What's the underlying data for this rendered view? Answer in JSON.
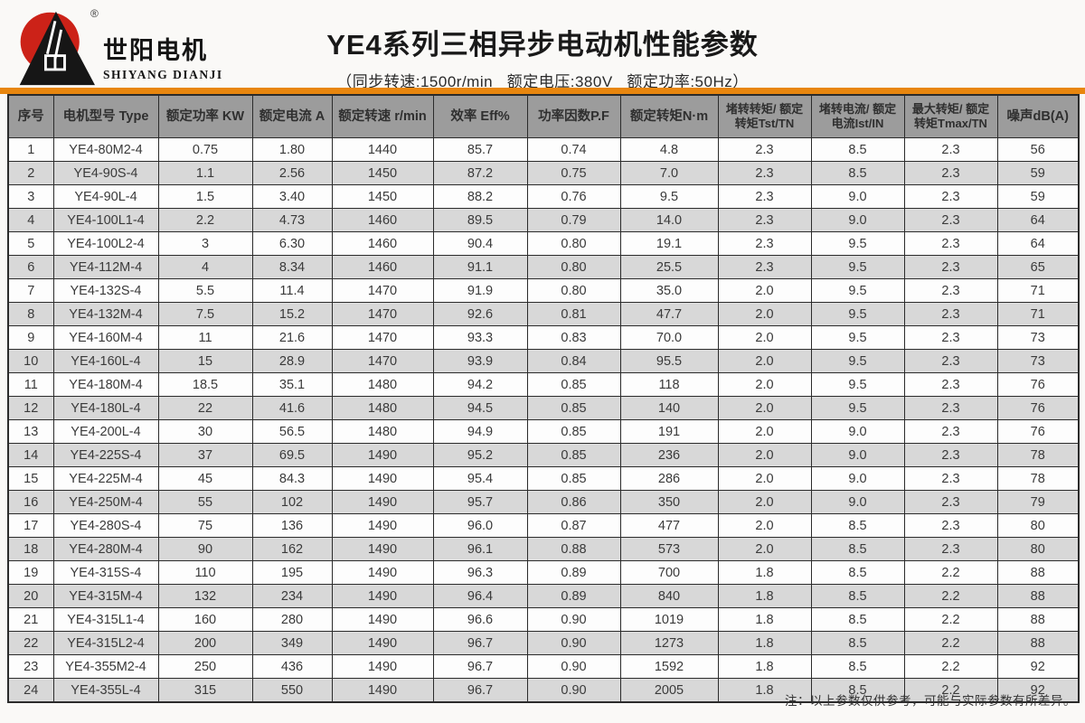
{
  "brand": {
    "name_cn": "世阳电机",
    "name_en": "SHIYANG DIANJI",
    "registered_mark": "®"
  },
  "header": {
    "title": "YE4系列三相异步电动机性能参数",
    "subtitle": "（同步转速:1500r/min   额定电压:380V   额定功率:50Hz）"
  },
  "table": {
    "columns": [
      "序号",
      "电机型号 Type",
      "额定功率 KW",
      "额定电流 A",
      "额定转速 r/min",
      "效率 Eff%",
      "功率因数P.F",
      "额定转矩N·m",
      "堵转转矩/ 额定转矩Tst/TN",
      "堵转电流/ 额定电流Ist/IN",
      "最大转矩/ 额定转矩Tmax/TN",
      "噪声dB(A)"
    ],
    "rows": [
      [
        "1",
        "YE4-80M2-4",
        "0.75",
        "1.80",
        "1440",
        "85.7",
        "0.74",
        "4.8",
        "2.3",
        "8.5",
        "2.3",
        "56"
      ],
      [
        "2",
        "YE4-90S-4",
        "1.1",
        "2.56",
        "1450",
        "87.2",
        "0.75",
        "7.0",
        "2.3",
        "8.5",
        "2.3",
        "59"
      ],
      [
        "3",
        "YE4-90L-4",
        "1.5",
        "3.40",
        "1450",
        "88.2",
        "0.76",
        "9.5",
        "2.3",
        "9.0",
        "2.3",
        "59"
      ],
      [
        "4",
        "YE4-100L1-4",
        "2.2",
        "4.73",
        "1460",
        "89.5",
        "0.79",
        "14.0",
        "2.3",
        "9.0",
        "2.3",
        "64"
      ],
      [
        "5",
        "YE4-100L2-4",
        "3",
        "6.30",
        "1460",
        "90.4",
        "0.80",
        "19.1",
        "2.3",
        "9.5",
        "2.3",
        "64"
      ],
      [
        "6",
        "YE4-112M-4",
        "4",
        "8.34",
        "1460",
        "91.1",
        "0.80",
        "25.5",
        "2.3",
        "9.5",
        "2.3",
        "65"
      ],
      [
        "7",
        "YE4-132S-4",
        "5.5",
        "11.4",
        "1470",
        "91.9",
        "0.80",
        "35.0",
        "2.0",
        "9.5",
        "2.3",
        "71"
      ],
      [
        "8",
        "YE4-132M-4",
        "7.5",
        "15.2",
        "1470",
        "92.6",
        "0.81",
        "47.7",
        "2.0",
        "9.5",
        "2.3",
        "71"
      ],
      [
        "9",
        "YE4-160M-4",
        "11",
        "21.6",
        "1470",
        "93.3",
        "0.83",
        "70.0",
        "2.0",
        "9.5",
        "2.3",
        "73"
      ],
      [
        "10",
        "YE4-160L-4",
        "15",
        "28.9",
        "1470",
        "93.9",
        "0.84",
        "95.5",
        "2.0",
        "9.5",
        "2.3",
        "73"
      ],
      [
        "11",
        "YE4-180M-4",
        "18.5",
        "35.1",
        "1480",
        "94.2",
        "0.85",
        "118",
        "2.0",
        "9.5",
        "2.3",
        "76"
      ],
      [
        "12",
        "YE4-180L-4",
        "22",
        "41.6",
        "1480",
        "94.5",
        "0.85",
        "140",
        "2.0",
        "9.5",
        "2.3",
        "76"
      ],
      [
        "13",
        "YE4-200L-4",
        "30",
        "56.5",
        "1480",
        "94.9",
        "0.85",
        "191",
        "2.0",
        "9.0",
        "2.3",
        "76"
      ],
      [
        "14",
        "YE4-225S-4",
        "37",
        "69.5",
        "1490",
        "95.2",
        "0.85",
        "236",
        "2.0",
        "9.0",
        "2.3",
        "78"
      ],
      [
        "15",
        "YE4-225M-4",
        "45",
        "84.3",
        "1490",
        "95.4",
        "0.85",
        "286",
        "2.0",
        "9.0",
        "2.3",
        "78"
      ],
      [
        "16",
        "YE4-250M-4",
        "55",
        "102",
        "1490",
        "95.7",
        "0.86",
        "350",
        "2.0",
        "9.0",
        "2.3",
        "79"
      ],
      [
        "17",
        "YE4-280S-4",
        "75",
        "136",
        "1490",
        "96.0",
        "0.87",
        "477",
        "2.0",
        "8.5",
        "2.3",
        "80"
      ],
      [
        "18",
        "YE4-280M-4",
        "90",
        "162",
        "1490",
        "96.1",
        "0.88",
        "573",
        "2.0",
        "8.5",
        "2.3",
        "80"
      ],
      [
        "19",
        "YE4-315S-4",
        "110",
        "195",
        "1490",
        "96.3",
        "0.89",
        "700",
        "1.8",
        "8.5",
        "2.2",
        "88"
      ],
      [
        "20",
        "YE4-315M-4",
        "132",
        "234",
        "1490",
        "96.4",
        "0.89",
        "840",
        "1.8",
        "8.5",
        "2.2",
        "88"
      ],
      [
        "21",
        "YE4-315L1-4",
        "160",
        "280",
        "1490",
        "96.6",
        "0.90",
        "1019",
        "1.8",
        "8.5",
        "2.2",
        "88"
      ],
      [
        "22",
        "YE4-315L2-4",
        "200",
        "349",
        "1490",
        "96.7",
        "0.90",
        "1273",
        "1.8",
        "8.5",
        "2.2",
        "88"
      ],
      [
        "23",
        "YE4-355M2-4",
        "250",
        "436",
        "1490",
        "96.7",
        "0.90",
        "1592",
        "1.8",
        "8.5",
        "2.2",
        "92"
      ],
      [
        "24",
        "YE4-355L-4",
        "315",
        "550",
        "1490",
        "96.7",
        "0.90",
        "2005",
        "1.8",
        "8.5",
        "2.2",
        "92"
      ]
    ]
  },
  "footer": {
    "note": "注：以上参数仅供参考，可能与实际参数有所差异。"
  },
  "colors": {
    "accent_orange": "#e8860e",
    "header_gray": "#9c9c9c",
    "stripe_gray": "#d8d8d8",
    "logo_red": "#cc2218",
    "logo_black": "#161616",
    "border_dark": "#2b2b2b"
  }
}
